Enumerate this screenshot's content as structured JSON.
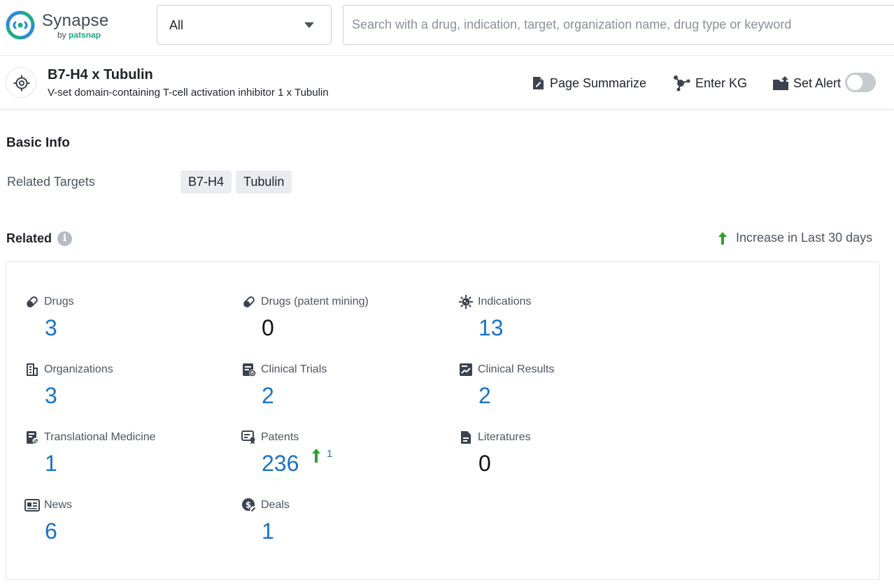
{
  "brand": {
    "name": "Synapse",
    "by_prefix": "by",
    "by_brand": "patsnap"
  },
  "search": {
    "scope_value": "All",
    "placeholder": "Search with a drug, indication, target, organization name, drug type or keyword"
  },
  "header": {
    "title": "B7-H4 x Tubulin",
    "subtitle": "V-set domain-containing T-cell activation inhibitor 1 x Tubulin",
    "actions": {
      "summarize": "Page Summarize",
      "kg": "Enter KG",
      "alert": "Set Alert"
    },
    "alert_enabled": false
  },
  "basic_info": {
    "title": "Basic Info",
    "related_targets_label": "Related Targets",
    "targets": [
      "B7-H4",
      "Tubulin"
    ]
  },
  "related": {
    "title": "Related",
    "legend": "Increase in Last 30 days",
    "colors": {
      "link": "#1a73c8",
      "increase": "#2ca02c",
      "muted": "#4e5562"
    },
    "stats": [
      {
        "label": "Drugs",
        "value": "3",
        "icon": "pill-icon"
      },
      {
        "label": "Drugs (patent mining)",
        "value": "0",
        "icon": "pill-icon"
      },
      {
        "label": "Indications",
        "value": "13",
        "icon": "virus-icon"
      },
      {
        "label": "Organizations",
        "value": "3",
        "icon": "building-icon"
      },
      {
        "label": "Clinical Trials",
        "value": "2",
        "icon": "clinical-trial-icon"
      },
      {
        "label": "Clinical Results",
        "value": "2",
        "icon": "chart-report-icon"
      },
      {
        "label": "Translational Medicine",
        "value": "1",
        "icon": "translational-icon"
      },
      {
        "label": "Patents",
        "value": "236",
        "icon": "patent-icon",
        "increase": "1"
      },
      {
        "label": "Literatures",
        "value": "0",
        "icon": "document-icon"
      },
      {
        "label": "News",
        "value": "6",
        "icon": "news-icon"
      },
      {
        "label": "Deals",
        "value": "1",
        "icon": "deal-icon"
      }
    ]
  }
}
